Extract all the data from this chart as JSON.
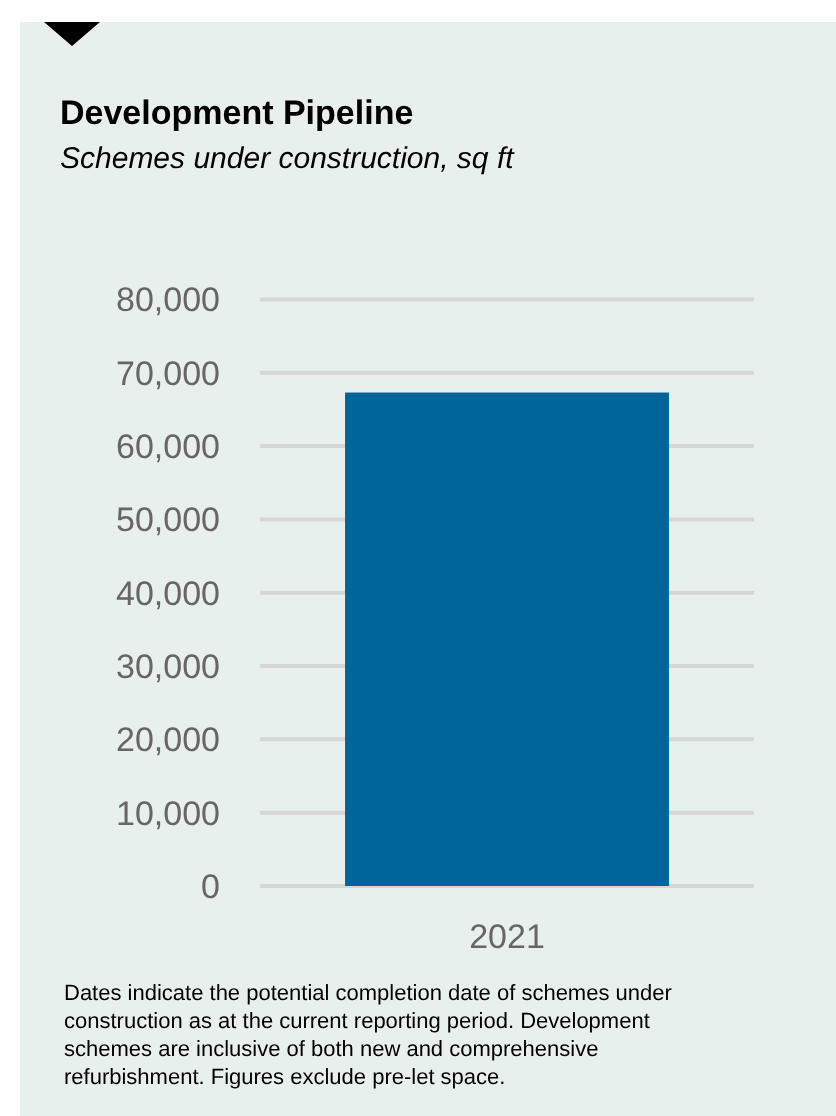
{
  "chart_data": {
    "type": "bar",
    "title": "Development Pipeline",
    "subtitle": "Schemes under construction, sq ft",
    "categories": [
      "2021"
    ],
    "values": [
      67300
    ],
    "color": "#006699",
    "ylim": [
      0,
      80000
    ],
    "yticks": [
      {
        "value": 0,
        "label": "0"
      },
      {
        "value": 10000,
        "label": "10,000"
      },
      {
        "value": 20000,
        "label": "20,000"
      },
      {
        "value": 30000,
        "label": "30,000"
      },
      {
        "value": 40000,
        "label": "40,000"
      },
      {
        "value": 50000,
        "label": "50,000"
      },
      {
        "value": 60000,
        "label": "60,000"
      },
      {
        "value": 70000,
        "label": "70,000"
      },
      {
        "value": 80000,
        "label": "80,000"
      }
    ],
    "grid": "y",
    "annotations": [
      "Dates indicate the potential completion date of schemes under construction as at the current reporting period. Development schemes are inclusive of both new and comprehensive refurbishment. Figures exclude pre-let space."
    ]
  }
}
